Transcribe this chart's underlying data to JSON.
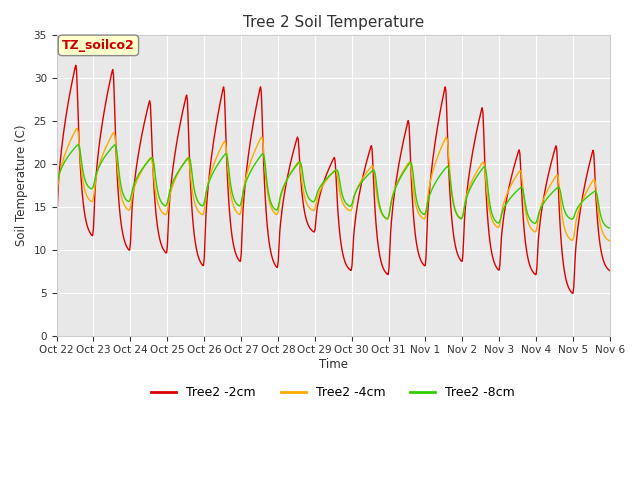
{
  "title": "Tree 2 Soil Temperature",
  "ylabel": "Soil Temperature (C)",
  "xlabel": "Time",
  "ylim": [
    0,
    35
  ],
  "yticks": [
    0,
    5,
    10,
    15,
    20,
    25,
    30,
    35
  ],
  "bg_outer": "#e8e8e8",
  "bg_inner": "#e8e8e8",
  "fig_color": "#ffffff",
  "grid_color": "#ffffff",
  "xtick_labels": [
    "Oct 22",
    "Oct 23",
    "Oct 24",
    "Oct 25",
    "Oct 26",
    "Oct 27",
    "Oct 28",
    "Oct 29",
    "Oct 30",
    "Oct 31",
    "Nov 1",
    "Nov 2",
    "Nov 3",
    "Nov 4",
    "Nov 5",
    "Nov 6"
  ],
  "series_2cm_color": "#dd0000",
  "series_4cm_color": "#ffaa00",
  "series_8cm_color": "#33cc00",
  "series_2cm_label": "Tree2 -2cm",
  "series_4cm_label": "Tree2 -4cm",
  "series_8cm_label": "Tree2 -8cm",
  "annotation_text": "TZ_soilco2",
  "annotation_color": "#cc0000",
  "annotation_bg": "#ffffcc",
  "annotation_border": "#aaaaaa",
  "peaks_2cm": [
    32.0,
    31.5,
    27.8,
    28.5,
    29.5,
    29.5,
    23.5,
    21.0,
    22.5,
    25.5,
    29.5,
    27.0,
    22.0,
    22.5,
    22.0
  ],
  "troughs_2cm": [
    11.5,
    9.8,
    9.5,
    8.0,
    8.5,
    7.8,
    12.0,
    7.5,
    7.0,
    8.0,
    8.5,
    7.5,
    7.0,
    4.8,
    7.5
  ],
  "peaks_4cm": [
    24.5,
    24.0,
    21.0,
    21.0,
    23.0,
    23.5,
    20.5,
    19.5,
    20.0,
    20.5,
    23.5,
    20.5,
    19.5,
    19.0,
    18.5
  ],
  "troughs_4cm": [
    15.5,
    14.5,
    14.0,
    14.0,
    14.0,
    14.0,
    14.5,
    14.5,
    13.5,
    13.5,
    13.5,
    12.5,
    12.0,
    11.0,
    11.0
  ],
  "peaks_8cm": [
    22.5,
    22.5,
    21.0,
    21.0,
    21.5,
    21.5,
    20.5,
    19.5,
    19.5,
    20.5,
    20.0,
    20.0,
    17.5,
    17.5,
    17.0
  ],
  "troughs_8cm": [
    17.0,
    15.5,
    15.0,
    15.0,
    15.0,
    14.5,
    15.5,
    15.0,
    13.5,
    14.0,
    13.5,
    13.0,
    13.0,
    13.5,
    12.5
  ]
}
